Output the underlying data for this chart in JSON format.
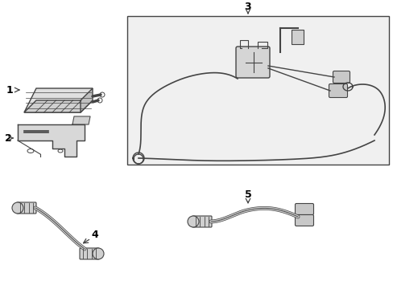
{
  "background_color": "#ffffff",
  "line_color": "#444444",
  "fig_width": 4.89,
  "fig_height": 3.6,
  "dpi": 100
}
